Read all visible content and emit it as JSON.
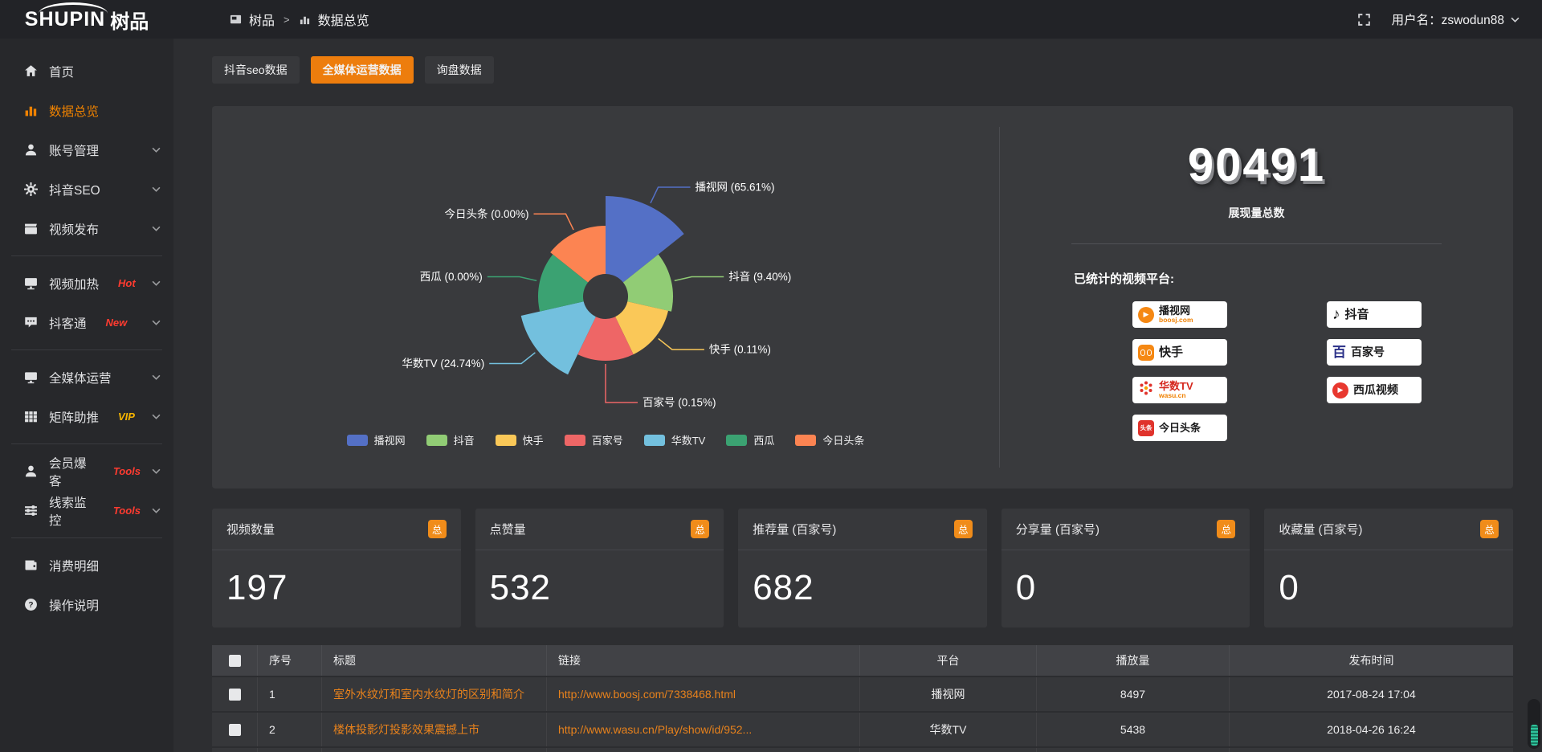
{
  "topbar": {
    "logo_primary": "SHUPIN",
    "logo_secondary": "树品",
    "breadcrumb": {
      "root": "树品",
      "separator": ">",
      "current": "数据总览"
    },
    "user_label": "用户名：zswodun88"
  },
  "sidebar": {
    "items": [
      {
        "label": "首页",
        "icon": "home-icon",
        "active": false
      },
      {
        "label": "数据总览",
        "icon": "bar-chart-icon",
        "active": true
      },
      {
        "label": "账号管理",
        "icon": "user-icon",
        "expandable": true
      },
      {
        "label": "抖音SEO",
        "icon": "gear-icon",
        "expandable": true
      },
      {
        "label": "视频发布",
        "icon": "clapperboard-icon",
        "expandable": true
      },
      {
        "label": "视频加热",
        "icon": "display-icon",
        "badge": "Hot",
        "badge_color": "#ff3b30",
        "expandable": true
      },
      {
        "label": "抖客通",
        "icon": "chat-icon",
        "badge": "New",
        "badge_color": "#ff3b30",
        "expandable": true
      },
      {
        "label": "全媒体运营",
        "icon": "monitor-icon",
        "expandable": true
      },
      {
        "label": "矩阵助推",
        "icon": "grid-icon",
        "badge": "VIP",
        "badge_color": "#f7b500",
        "expandable": true
      },
      {
        "label": "会员爆客",
        "icon": "member-icon",
        "badge": "Tools",
        "badge_color": "#ff3b30",
        "expandable": true
      },
      {
        "label": "线索监控",
        "icon": "sliders-icon",
        "badge": "Tools",
        "badge_color": "#ff3b30",
        "expandable": true
      },
      {
        "label": "消费明细",
        "icon": "wallet-icon"
      },
      {
        "label": "操作说明",
        "icon": "question-icon"
      }
    ]
  },
  "tabs": {
    "items": [
      {
        "label": "抖音seo数据",
        "active": false
      },
      {
        "label": "全媒体运营数据",
        "active": true
      },
      {
        "label": "询盘数据",
        "active": false
      }
    ]
  },
  "chart_data": {
    "type": "pie",
    "variant": "nightingale-rose",
    "equal_angles": true,
    "inner_radius_px": 28,
    "legend_position": "bottom",
    "slices": [
      {
        "name": "播视网",
        "percent": 65.61,
        "label": "播视网 (65.61%)",
        "color": "#5470c6",
        "display_radius": 125
      },
      {
        "name": "抖音",
        "percent": 9.4,
        "label": "抖音 (9.40%)",
        "color": "#91cc75",
        "display_radius": 84
      },
      {
        "name": "快手",
        "percent": 0.11,
        "label": "快手 (0.11%)",
        "color": "#fac858",
        "display_radius": 80
      },
      {
        "name": "百家号",
        "percent": 0.15,
        "label": "百家号 (0.15%)",
        "color": "#ee6666",
        "display_radius": 80
      },
      {
        "name": "华数TV",
        "percent": 24.74,
        "label": "华数TV (24.74%)",
        "color": "#73c0de",
        "display_radius": 108
      },
      {
        "name": "西瓜",
        "percent": 0.0,
        "label": "西瓜 (0.00%)",
        "color": "#3ba272",
        "display_radius": 84
      },
      {
        "name": "今日头条",
        "percent": 0.0,
        "label": "今日头条 (0.00%)",
        "color": "#fc8452",
        "display_radius": 88
      }
    ],
    "legend": [
      "播视网",
      "抖音",
      "快手",
      "百家号",
      "华数TV",
      "西瓜",
      "今日头条"
    ]
  },
  "summary": {
    "total_value": "90491",
    "total_label": "展现量总数",
    "platforms_title": "已统计的视频平台:",
    "platforms": [
      {
        "name": "播视网",
        "sub": "boosj.com",
        "icon": "boosj-logo"
      },
      {
        "name": "抖音",
        "icon": "douyin-logo"
      },
      {
        "name": "快手",
        "icon": "kuaishou-logo"
      },
      {
        "name": "百家号",
        "icon": "baijiahao-logo"
      },
      {
        "name": "华数TV",
        "sub": "wasu.cn",
        "icon": "wasu-logo"
      },
      {
        "name": "西瓜视频",
        "icon": "xigua-logo"
      },
      {
        "name": "今日头条",
        "icon": "toutiao-logo"
      }
    ]
  },
  "stat_cards": [
    {
      "title": "视频数量",
      "badge": "总",
      "value": "197"
    },
    {
      "title": "点赞量",
      "badge": "总",
      "value": "532"
    },
    {
      "title": "推荐量 (百家号)",
      "badge": "总",
      "value": "682"
    },
    {
      "title": "分享量 (百家号)",
      "badge": "总",
      "value": "0"
    },
    {
      "title": "收藏量 (百家号)",
      "badge": "总",
      "value": "0"
    }
  ],
  "table": {
    "headers": [
      "序号",
      "标题",
      "链接",
      "平台",
      "播放量",
      "发布时间"
    ],
    "rows": [
      {
        "no": "1",
        "title": "室外水纹灯和室内水纹灯的区别和简介",
        "link": "http://www.boosj.com/7338468.html",
        "platform": "播视网",
        "views": "8497",
        "time": "2017-08-24 17:04"
      },
      {
        "no": "2",
        "title": "楼体投影灯投影效果震撼上市",
        "link": "http://www.wasu.cn/Play/show/id/952...",
        "platform": "华数TV",
        "views": "5438",
        "time": "2018-04-26 16:24"
      }
    ]
  },
  "colors": {
    "accent_orange": "#ed7d0d",
    "badge_orange": "#f08c1a",
    "link_orange": "#e8821c",
    "hot_red": "#ff3b30",
    "vip_gold": "#f7b500",
    "scroll_teal": "#2fc39b"
  }
}
